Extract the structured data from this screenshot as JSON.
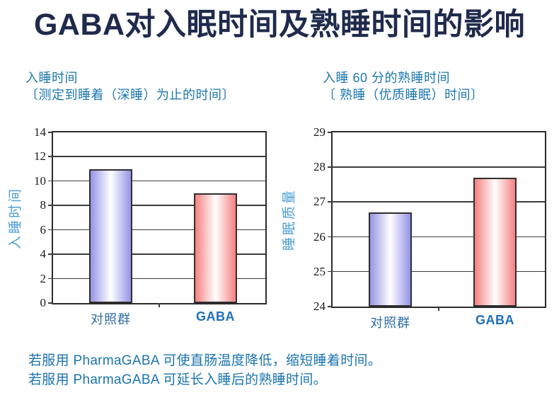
{
  "title": "GABA对入眠时间及熟睡时间的影响",
  "footer": {
    "line1": "若服用 PharmaGABA 可使直肠温度降低，缩短睡着时间。",
    "line2": "若服用 PharmaGABA 可延长入睡后的熟睡时间。"
  },
  "colors": {
    "title_text": "#1f2a4c",
    "subtitle_text": "#1d77ad",
    "axis_label_text": "#4c9fd2",
    "category_label_text": "#2e6da4",
    "footer_text": "#1b74ad",
    "gridline": "#3c3c3c",
    "bar_blue": "#9494e6",
    "bar_pink": "#f58080"
  },
  "chart_data": [
    {
      "type": "bar",
      "title": "入睡时间",
      "subtitle": "〔测定到睡着（深睡）为止的时间〕",
      "ylabel": "入睡时间",
      "categories": [
        "对照群",
        "GABA"
      ],
      "values": [
        11,
        9
      ],
      "ylim": [
        0,
        14
      ],
      "ytick_step": 2,
      "grid": true,
      "legend": "none",
      "bar_colors": [
        "#9494e6",
        "#f58080"
      ]
    },
    {
      "type": "bar",
      "title": "入睡 60 分的熟睡时间",
      "subtitle": "〔 熟睡（优质睡眠）时间〕",
      "ylabel": "睡眠质量",
      "categories": [
        "对照群",
        "GABA"
      ],
      "values": [
        26.7,
        27.7
      ],
      "ylim": [
        24,
        29
      ],
      "ytick_step": 1,
      "grid": true,
      "legend": "none",
      "bar_colors": [
        "#9494e6",
        "#f58080"
      ]
    }
  ]
}
